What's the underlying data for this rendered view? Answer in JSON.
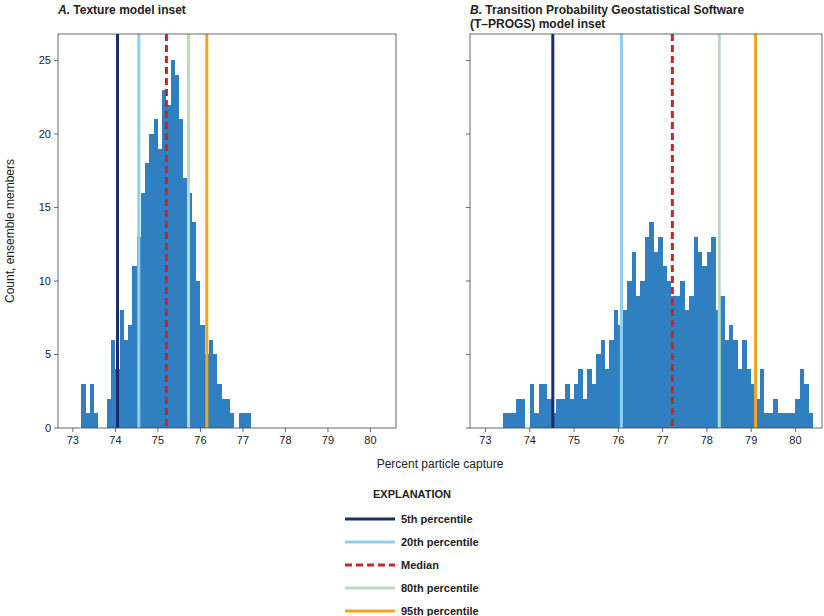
{
  "chart_data": [
    {
      "type": "histogram",
      "title": [
        "A. Texture model inset"
      ],
      "y_label": "Count, ensemble members",
      "color": "#2f7fc1",
      "bins": [
        73.2,
        73.3,
        73.4,
        73.5,
        73.6,
        73.7,
        73.8,
        73.9,
        74.0,
        74.1,
        74.2,
        74.3,
        74.4,
        74.5,
        74.6,
        74.7,
        74.8,
        74.9,
        75.0,
        75.1,
        75.2,
        75.3,
        75.4,
        75.5,
        75.6,
        75.7,
        75.8,
        75.9,
        76.0,
        76.1,
        76.2,
        76.3,
        76.4,
        76.5,
        76.6,
        76.7,
        76.8,
        76.9,
        77.0,
        77.1,
        77.2
      ],
      "values": [
        3,
        1,
        3,
        1,
        0,
        0,
        2,
        6,
        4,
        8,
        6,
        7,
        11,
        13,
        16,
        18,
        20,
        21,
        19,
        23,
        22,
        25,
        24,
        21,
        17,
        16,
        14,
        10,
        7,
        5,
        6,
        5,
        3,
        2,
        2,
        1,
        0,
        1,
        1,
        1
      ],
      "reference_lines": [
        74.05,
        74.55,
        75.2,
        75.72,
        76.15
      ],
      "xlim": [
        72.65,
        80.6
      ],
      "ylim": [
        0,
        26.8
      ],
      "xticks": [
        73,
        74,
        75,
        76,
        77,
        78,
        79,
        80
      ],
      "yticks": [
        0,
        5,
        10,
        15,
        20,
        25
      ],
      "tick_labels": true
    },
    {
      "type": "histogram",
      "title": [
        "B. Transition Probability Geostatistical Software",
        "(T–PROGS) model inset"
      ],
      "color": "#2f7fc1",
      "bins": [
        73.4,
        73.5,
        73.6,
        73.7,
        73.8,
        73.9,
        74.0,
        74.1,
        74.2,
        74.3,
        74.4,
        74.5,
        74.6,
        74.7,
        74.8,
        74.9,
        75.0,
        75.1,
        75.2,
        75.3,
        75.4,
        75.5,
        75.6,
        75.7,
        75.8,
        75.9,
        76.0,
        76.1,
        76.2,
        76.3,
        76.4,
        76.5,
        76.6,
        76.7,
        76.8,
        76.9,
        77.0,
        77.1,
        77.2,
        77.3,
        77.4,
        77.5,
        77.6,
        77.7,
        77.8,
        77.9,
        78.0,
        78.1,
        78.2,
        78.3,
        78.4,
        78.5,
        78.6,
        78.7,
        78.8,
        78.9,
        79.0,
        79.1,
        79.2,
        79.3,
        79.4,
        79.5,
        79.6,
        79.7,
        79.8,
        79.9,
        80.0,
        80.1,
        80.2,
        80.3,
        80.4
      ],
      "values": [
        1,
        1,
        1,
        2,
        2,
        0,
        3,
        1,
        3,
        3,
        2,
        1,
        2,
        2,
        3,
        2,
        3,
        4,
        2,
        4,
        3,
        5,
        6,
        4,
        6,
        8,
        7,
        8,
        10,
        12,
        9,
        10,
        13,
        14,
        12,
        13,
        11,
        10,
        9,
        9,
        10,
        8,
        9,
        13,
        12,
        11,
        12,
        13,
        8,
        9,
        6,
        7,
        6,
        4,
        6,
        4,
        3,
        2,
        4,
        1,
        1,
        2,
        1,
        1,
        1,
        1,
        2,
        4,
        3,
        1
      ],
      "reference_lines": [
        74.52,
        76.07,
        77.22,
        78.28,
        79.1
      ],
      "xlim": [
        72.65,
        80.6
      ],
      "ylim": [
        0,
        26.8
      ],
      "xticks": [
        73,
        74,
        75,
        76,
        77,
        78,
        79,
        80
      ],
      "yticks": [
        0,
        5,
        10,
        15,
        20,
        25
      ],
      "tick_labels": "x"
    }
  ],
  "x_label": "Percent particle capture",
  "explanation": {
    "title": "EXPLANATION",
    "items": [
      {
        "name": "5th percentile",
        "color": "#1c2b6b",
        "line_style": "solid"
      },
      {
        "name": "20th percentile",
        "color": "#8fd0f0",
        "line_style": "solid"
      },
      {
        "name": "Median",
        "color": "#c1272d",
        "line_style": "dashed"
      },
      {
        "name": "80th percentile",
        "color": "#b5dcc0",
        "line_style": "solid"
      },
      {
        "name": "95th percentile",
        "color": "#f5a31f",
        "line_style": "solid"
      }
    ]
  }
}
